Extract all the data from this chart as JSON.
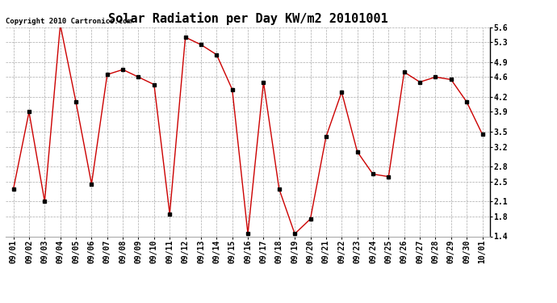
{
  "title": "Solar Radiation per Day KW/m2 20101001",
  "copyright_text": "Copyright 2010 Cartronics.com",
  "dates": [
    "09/01",
    "09/02",
    "09/03",
    "09/04",
    "09/05",
    "09/06",
    "09/07",
    "09/08",
    "09/09",
    "09/10",
    "09/11",
    "09/12",
    "09/13",
    "09/14",
    "09/15",
    "09/16",
    "09/17",
    "09/18",
    "09/19",
    "09/20",
    "09/21",
    "09/22",
    "09/23",
    "09/24",
    "09/25",
    "09/26",
    "09/27",
    "09/28",
    "09/29",
    "09/30",
    "10/01"
  ],
  "values": [
    2.35,
    3.9,
    2.1,
    5.65,
    4.1,
    2.45,
    4.65,
    4.75,
    4.6,
    4.45,
    1.85,
    5.4,
    5.25,
    5.05,
    4.35,
    1.45,
    4.5,
    2.35,
    1.45,
    1.75,
    3.4,
    4.3,
    3.1,
    2.65,
    2.6,
    4.7,
    4.5,
    4.6,
    4.55,
    4.1,
    3.45
  ],
  "line_color": "#cc0000",
  "marker": "s",
  "marker_color": "#000000",
  "marker_size": 2.5,
  "background_color": "#ffffff",
  "grid_color": "#aaaaaa",
  "ylim": [
    1.4,
    5.6
  ],
  "yticks": [
    1.4,
    1.8,
    2.1,
    2.5,
    2.8,
    3.2,
    3.5,
    3.9,
    4.2,
    4.6,
    4.9,
    5.3,
    5.6
  ],
  "title_fontsize": 11,
  "tick_fontsize": 7,
  "copyright_fontsize": 6.5
}
